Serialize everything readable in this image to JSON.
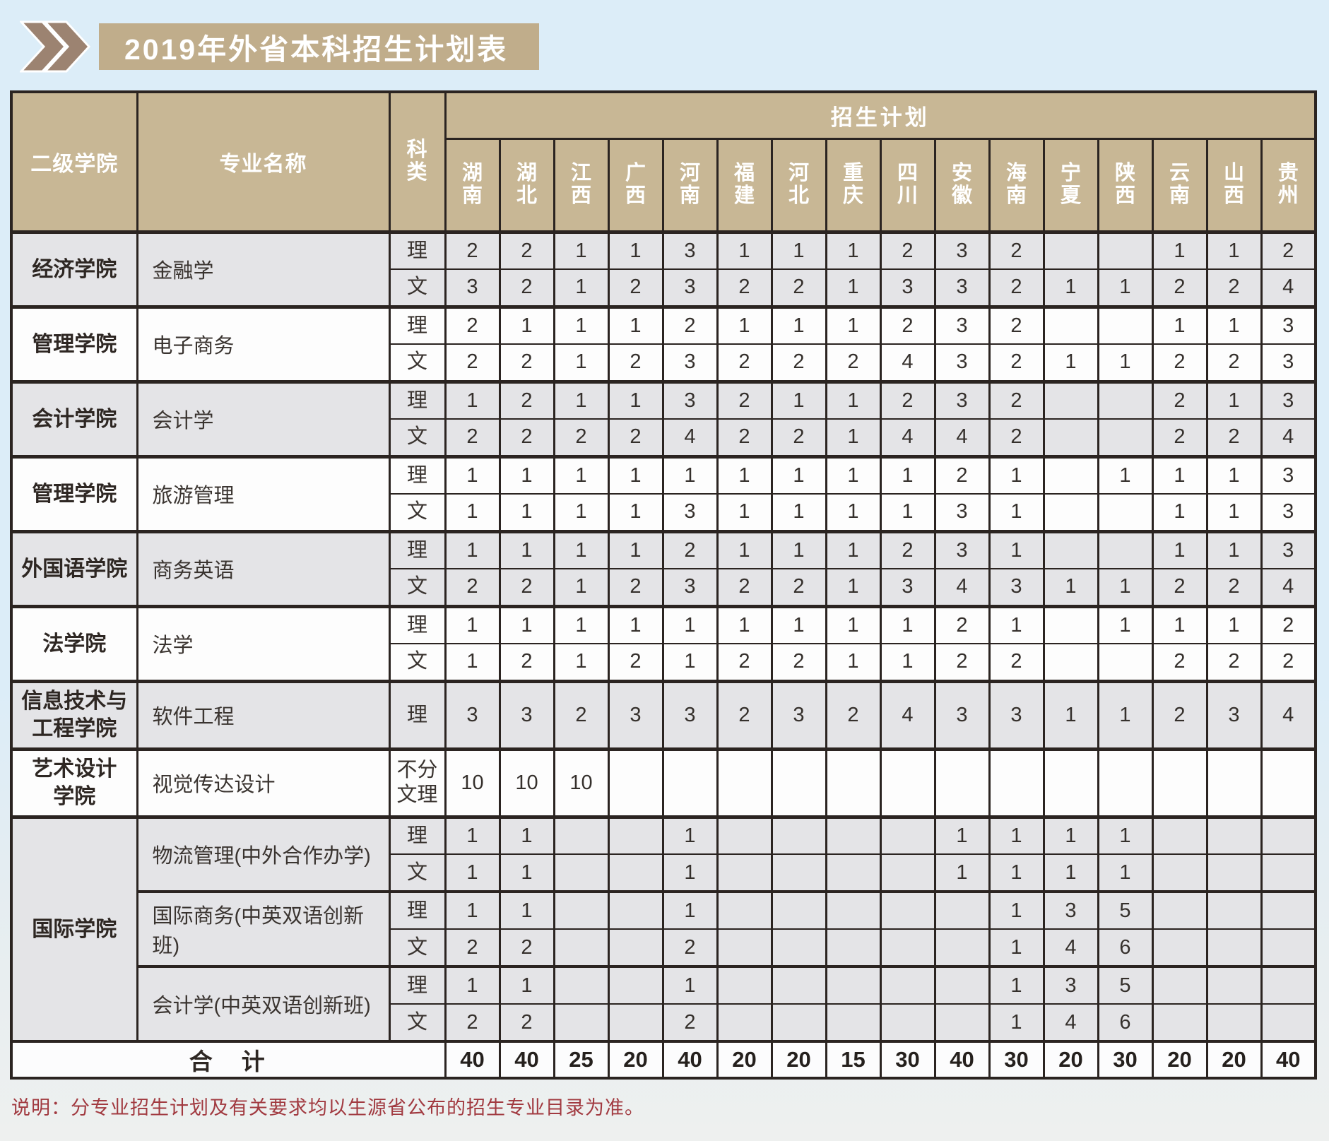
{
  "colors": {
    "page_bg": "#dcedf8",
    "title_bar_bg": "#c0ad8b",
    "chevron": "#9c8371",
    "table_header_bg": "#c8b795",
    "row_shade_gray": "#e4e4e7",
    "row_shade_white": "#fdfdfd",
    "grid_line": "#2b2421",
    "value_text": "#35302c",
    "note_text": "#a13a40"
  },
  "title": "2019年外省本科招生计划表",
  "table": {
    "col_headers": {
      "college": "二级学院",
      "major": "专业名称",
      "category": "科类",
      "plan_group": "招生计划"
    },
    "provinces": [
      "湖南",
      "湖北",
      "江西",
      "广西",
      "河南",
      "福建",
      "河北",
      "重庆",
      "四川",
      "安徽",
      "海南",
      "宁夏",
      "陕西",
      "云南",
      "山西",
      "贵州"
    ],
    "groups": [
      {
        "college": "经济学院",
        "shade": "gray",
        "majors": [
          {
            "name": "金融学",
            "rows": [
              {
                "category": "理",
                "values": [
                  "2",
                  "2",
                  "1",
                  "1",
                  "3",
                  "1",
                  "1",
                  "1",
                  "2",
                  "3",
                  "2",
                  "",
                  "",
                  "1",
                  "1",
                  "2"
                ]
              },
              {
                "category": "文",
                "values": [
                  "3",
                  "2",
                  "1",
                  "2",
                  "3",
                  "2",
                  "2",
                  "1",
                  "3",
                  "3",
                  "2",
                  "1",
                  "1",
                  "2",
                  "2",
                  "4"
                ]
              }
            ]
          }
        ]
      },
      {
        "college": "管理学院",
        "shade": "white",
        "majors": [
          {
            "name": "电子商务",
            "rows": [
              {
                "category": "理",
                "values": [
                  "2",
                  "1",
                  "1",
                  "1",
                  "2",
                  "1",
                  "1",
                  "1",
                  "2",
                  "3",
                  "2",
                  "",
                  "",
                  "1",
                  "1",
                  "3"
                ]
              },
              {
                "category": "文",
                "values": [
                  "2",
                  "2",
                  "1",
                  "2",
                  "3",
                  "2",
                  "2",
                  "2",
                  "4",
                  "3",
                  "2",
                  "1",
                  "1",
                  "2",
                  "2",
                  "3"
                ]
              }
            ]
          }
        ]
      },
      {
        "college": "会计学院",
        "shade": "gray",
        "majors": [
          {
            "name": "会计学",
            "rows": [
              {
                "category": "理",
                "values": [
                  "1",
                  "2",
                  "1",
                  "1",
                  "3",
                  "2",
                  "1",
                  "1",
                  "2",
                  "3",
                  "2",
                  "",
                  "",
                  "2",
                  "1",
                  "3"
                ]
              },
              {
                "category": "文",
                "values": [
                  "2",
                  "2",
                  "2",
                  "2",
                  "4",
                  "2",
                  "2",
                  "1",
                  "4",
                  "4",
                  "2",
                  "",
                  "",
                  "2",
                  "2",
                  "4"
                ]
              }
            ]
          }
        ]
      },
      {
        "college": "管理学院",
        "shade": "white",
        "majors": [
          {
            "name": "旅游管理",
            "rows": [
              {
                "category": "理",
                "values": [
                  "1",
                  "1",
                  "1",
                  "1",
                  "1",
                  "1",
                  "1",
                  "1",
                  "1",
                  "2",
                  "1",
                  "",
                  "1",
                  "1",
                  "1",
                  "3"
                ]
              },
              {
                "category": "文",
                "values": [
                  "1",
                  "1",
                  "1",
                  "1",
                  "3",
                  "1",
                  "1",
                  "1",
                  "1",
                  "3",
                  "1",
                  "",
                  "",
                  "1",
                  "1",
                  "3"
                ]
              }
            ]
          }
        ]
      },
      {
        "college": "外国语学院",
        "shade": "gray",
        "majors": [
          {
            "name": "商务英语",
            "rows": [
              {
                "category": "理",
                "values": [
                  "1",
                  "1",
                  "1",
                  "1",
                  "2",
                  "1",
                  "1",
                  "1",
                  "2",
                  "3",
                  "1",
                  "",
                  "",
                  "1",
                  "1",
                  "3"
                ]
              },
              {
                "category": "文",
                "values": [
                  "2",
                  "2",
                  "1",
                  "2",
                  "3",
                  "2",
                  "2",
                  "1",
                  "3",
                  "4",
                  "3",
                  "1",
                  "1",
                  "2",
                  "2",
                  "4"
                ]
              }
            ]
          }
        ]
      },
      {
        "college": "法学院",
        "shade": "white",
        "majors": [
          {
            "name": "法学",
            "rows": [
              {
                "category": "理",
                "values": [
                  "1",
                  "1",
                  "1",
                  "1",
                  "1",
                  "1",
                  "1",
                  "1",
                  "1",
                  "2",
                  "1",
                  "",
                  "1",
                  "1",
                  "1",
                  "2"
                ]
              },
              {
                "category": "文",
                "values": [
                  "1",
                  "2",
                  "1",
                  "2",
                  "1",
                  "2",
                  "2",
                  "1",
                  "1",
                  "2",
                  "2",
                  "",
                  "",
                  "2",
                  "2",
                  "2"
                ]
              }
            ]
          }
        ]
      },
      {
        "college": "信息技术与\n工程学院",
        "shade": "gray",
        "majors": [
          {
            "name": "软件工程",
            "rows": [
              {
                "category": "理",
                "tall": true,
                "values": [
                  "3",
                  "3",
                  "2",
                  "3",
                  "3",
                  "2",
                  "3",
                  "2",
                  "4",
                  "3",
                  "3",
                  "1",
                  "1",
                  "2",
                  "3",
                  "4"
                ]
              }
            ]
          }
        ]
      },
      {
        "college": "艺术设计\n学院",
        "shade": "white",
        "majors": [
          {
            "name": "视觉传达设计",
            "rows": [
              {
                "category": "不分\n文理",
                "tall": true,
                "values": [
                  "10",
                  "10",
                  "10",
                  "",
                  "",
                  "",
                  "",
                  "",
                  "",
                  "",
                  "",
                  "",
                  "",
                  "",
                  "",
                  ""
                ]
              }
            ]
          }
        ]
      },
      {
        "college": "国际学院",
        "shade": "gray",
        "majors": [
          {
            "name": "物流管理(中外合作办学)",
            "rows": [
              {
                "category": "理",
                "values": [
                  "1",
                  "1",
                  "",
                  "",
                  "1",
                  "",
                  "",
                  "",
                  "",
                  "1",
                  "1",
                  "1",
                  "1",
                  "",
                  "",
                  ""
                ]
              },
              {
                "category": "文",
                "values": [
                  "1",
                  "1",
                  "",
                  "",
                  "1",
                  "",
                  "",
                  "",
                  "",
                  "1",
                  "1",
                  "1",
                  "1",
                  "",
                  "",
                  ""
                ]
              }
            ]
          },
          {
            "name": "国际商务(中英双语创新班)",
            "rows": [
              {
                "category": "理",
                "values": [
                  "1",
                  "1",
                  "",
                  "",
                  "1",
                  "",
                  "",
                  "",
                  "",
                  "",
                  "1",
                  "3",
                  "5",
                  "",
                  "",
                  ""
                ]
              },
              {
                "category": "文",
                "values": [
                  "2",
                  "2",
                  "",
                  "",
                  "2",
                  "",
                  "",
                  "",
                  "",
                  "",
                  "1",
                  "4",
                  "6",
                  "",
                  "",
                  ""
                ]
              }
            ]
          },
          {
            "name": "会计学(中英双语创新班)",
            "rows": [
              {
                "category": "理",
                "values": [
                  "1",
                  "1",
                  "",
                  "",
                  "1",
                  "",
                  "",
                  "",
                  "",
                  "",
                  "1",
                  "3",
                  "5",
                  "",
                  "",
                  ""
                ]
              },
              {
                "category": "文",
                "values": [
                  "2",
                  "2",
                  "",
                  "",
                  "2",
                  "",
                  "",
                  "",
                  "",
                  "",
                  "1",
                  "4",
                  "6",
                  "",
                  "",
                  ""
                ]
              }
            ]
          }
        ]
      }
    ],
    "footer": {
      "label": "合　计",
      "values": [
        "40",
        "40",
        "25",
        "20",
        "40",
        "20",
        "20",
        "15",
        "30",
        "40",
        "30",
        "20",
        "30",
        "20",
        "20",
        "40"
      ]
    }
  },
  "note": "说明：分专业招生计划及有关要求均以生源省公布的招生专业目录为准。"
}
